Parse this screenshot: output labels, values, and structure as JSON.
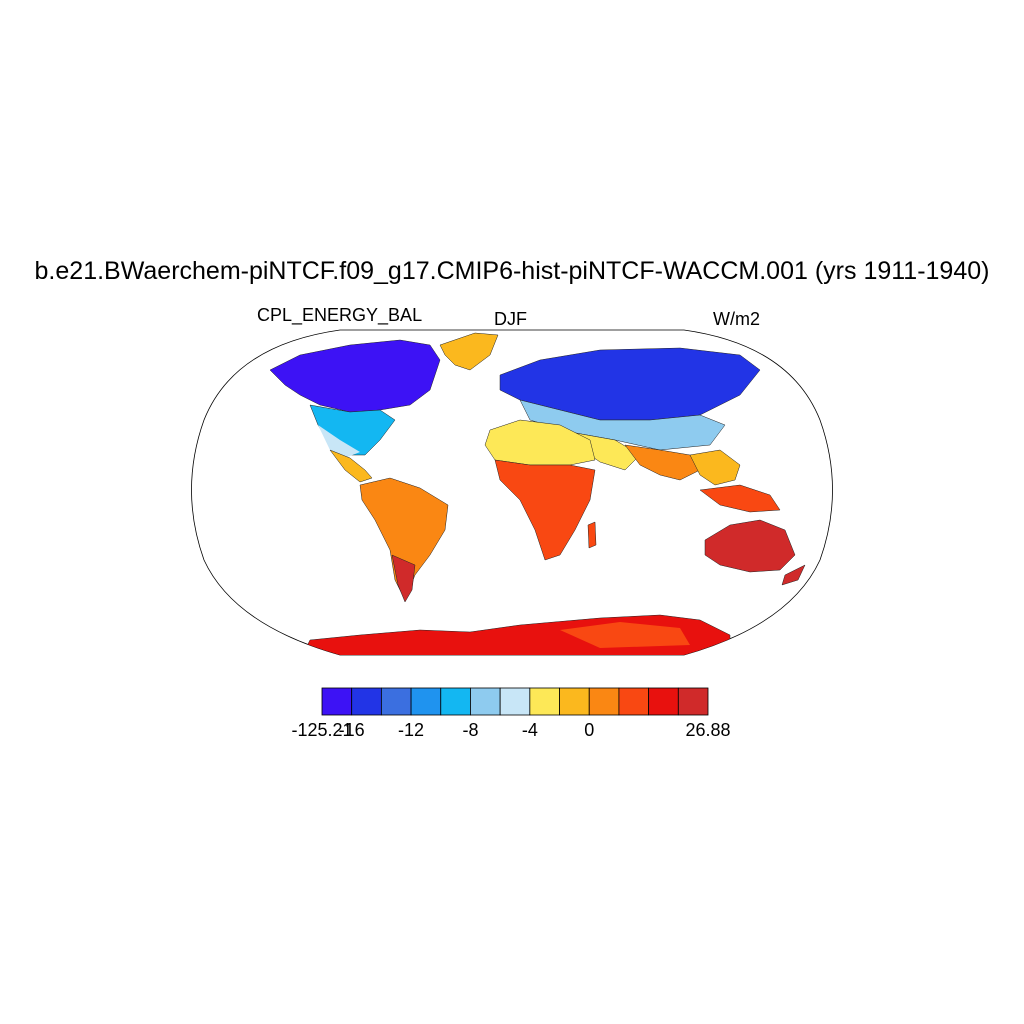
{
  "title": "b.e21.BWaerchem-piNTCF.f09_g17.CMIP6-hist-piNTCF-WACCM.001 (yrs 1911-1940)",
  "left_string": "CPL_ENERGY_BAL",
  "center_string": "DJF",
  "right_string": "W/m2",
  "colorbar": {
    "colors": [
      "#3d12f5",
      "#2234e6",
      "#3b6fe0",
      "#1f93ef",
      "#13b7f2",
      "#8ecbef",
      "#c8e6f7",
      "#fde857",
      "#fbb81e",
      "#fa8713",
      "#f94812",
      "#e8110e",
      "#d02a2a"
    ],
    "labels": [
      {
        "text": "-125.21",
        "boundary": 0
      },
      {
        "text": "-16",
        "boundary": 1
      },
      {
        "text": "-12",
        "boundary": 3
      },
      {
        "text": "-8",
        "boundary": 5
      },
      {
        "text": "-4",
        "boundary": 7
      },
      {
        "text": "0",
        "boundary": 9
      },
      {
        "text": "26.88",
        "boundary": 13
      }
    ]
  },
  "map": {
    "projection": "robinson",
    "regions": [
      {
        "name": "north-america-cold",
        "color": "#3d12f5"
      },
      {
        "name": "greenland",
        "color": "#fbb81e"
      },
      {
        "name": "eurasia-cold",
        "color": "#2234e6"
      },
      {
        "name": "mid-latitude-transition",
        "color": "#8ecbef"
      },
      {
        "name": "north-africa",
        "color": "#fde857"
      },
      {
        "name": "sub-saharan-africa",
        "color": "#f94812"
      },
      {
        "name": "south-america",
        "color": "#fa8713"
      },
      {
        "name": "australia",
        "color": "#d02a2a"
      },
      {
        "name": "antarctica",
        "color": "#e8110e"
      }
    ]
  }
}
